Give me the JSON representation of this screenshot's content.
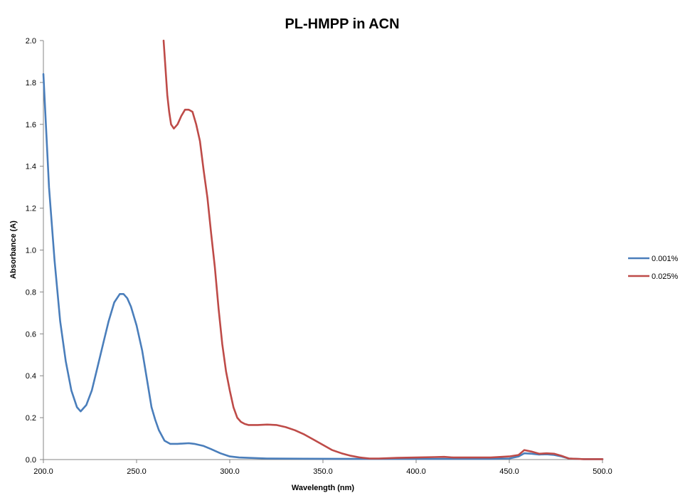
{
  "chart_data": {
    "type": "line",
    "title": "PL-HMPP in ACN",
    "xlabel": "Wavelength (nm)",
    "ylabel": "Absorbance (A)",
    "xlim": [
      200,
      500
    ],
    "ylim": [
      0,
      2.0
    ],
    "x_ticks": [
      "200.0",
      "250.0",
      "300.0",
      "350.0",
      "400.0",
      "450.0",
      "500.0"
    ],
    "y_ticks": [
      "0.0",
      "0.2",
      "0.4",
      "0.6",
      "0.8",
      "1.0",
      "1.2",
      "1.4",
      "1.6",
      "1.8",
      "2.0"
    ],
    "grid": false,
    "legend_position": "right",
    "series": [
      {
        "name": "0.001%",
        "color": "#4a7ebb",
        "x": [
          200,
          203,
          206,
          209,
          212,
          215,
          218,
          220,
          223,
          226,
          229,
          232,
          235,
          238,
          241,
          243,
          245,
          247,
          250,
          253,
          256,
          258,
          260,
          262,
          265,
          268,
          272,
          278,
          281,
          286,
          290,
          295,
          300,
          305,
          310,
          320,
          340,
          370,
          400,
          420,
          440,
          450,
          455,
          458,
          462,
          466,
          470,
          474,
          478,
          482,
          490,
          500
        ],
        "y": [
          1.84,
          1.3,
          0.95,
          0.66,
          0.47,
          0.33,
          0.25,
          0.23,
          0.26,
          0.33,
          0.44,
          0.55,
          0.66,
          0.75,
          0.79,
          0.79,
          0.77,
          0.73,
          0.64,
          0.52,
          0.36,
          0.25,
          0.19,
          0.14,
          0.09,
          0.075,
          0.075,
          0.078,
          0.075,
          0.065,
          0.05,
          0.03,
          0.015,
          0.01,
          0.008,
          0.005,
          0.004,
          0.003,
          0.003,
          0.003,
          0.003,
          0.005,
          0.015,
          0.03,
          0.028,
          0.024,
          0.025,
          0.022,
          0.015,
          0.005,
          0.002,
          0.002
        ]
      },
      {
        "name": "0.025%",
        "color": "#be4b48",
        "x": [
          264.5,
          265.5,
          266.5,
          267.5,
          268.5,
          270,
          272,
          274,
          276,
          278,
          280,
          282,
          284,
          286,
          288,
          290,
          292,
          294,
          296,
          298,
          300,
          302,
          304,
          306,
          308,
          310,
          315,
          320,
          325,
          330,
          335,
          340,
          345,
          350,
          355,
          360,
          365,
          370,
          375,
          380,
          390,
          400,
          410,
          415,
          420,
          430,
          440,
          450,
          455,
          458,
          462,
          466,
          470,
          474,
          478,
          482,
          490,
          500
        ],
        "y": [
          2.0,
          1.87,
          1.74,
          1.66,
          1.6,
          1.58,
          1.6,
          1.64,
          1.67,
          1.67,
          1.66,
          1.6,
          1.52,
          1.38,
          1.25,
          1.08,
          0.92,
          0.72,
          0.55,
          0.42,
          0.33,
          0.25,
          0.2,
          0.18,
          0.17,
          0.165,
          0.165,
          0.167,
          0.165,
          0.155,
          0.14,
          0.12,
          0.095,
          0.07,
          0.045,
          0.03,
          0.018,
          0.01,
          0.005,
          0.005,
          0.008,
          0.01,
          0.012,
          0.013,
          0.01,
          0.01,
          0.01,
          0.015,
          0.022,
          0.045,
          0.038,
          0.028,
          0.03,
          0.028,
          0.018,
          0.005,
          0.002,
          0.002
        ]
      }
    ]
  }
}
